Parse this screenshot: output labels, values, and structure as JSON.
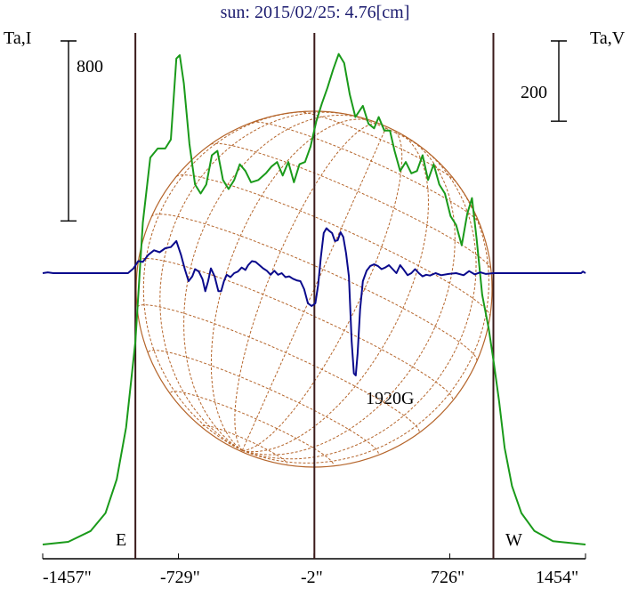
{
  "chart_data": {
    "type": "line",
    "title": "sun: 2015/02/25: 4.76[cm]",
    "left_axis_label": "Ta,I",
    "right_axis_label": "Ta,V",
    "x_tick_labels": [
      "-1457\"",
      "-729\"",
      "-2\"",
      "726\"",
      "1454\""
    ],
    "x_ticks": [
      -1457,
      -729,
      -2,
      726,
      1454
    ],
    "xlim": [
      -1457,
      1454
    ],
    "scale_bar_left": "800",
    "scale_bar_right": "200",
    "limb_labels": {
      "east": "E",
      "west": "W"
    },
    "limb_positions": [
      -960,
      0,
      960
    ],
    "annotation": {
      "text": "1920G",
      "x": 395
    },
    "colors": {
      "intensity": "#1a9a1a",
      "polarization": "#0a0a8c",
      "disk": "#b5652b",
      "limb_lines": "#3a1a1a"
    },
    "series": [
      {
        "key": "stokes-i",
        "color": "#1a9a1a",
        "points": [
          [
            -1457,
            0
          ],
          [
            -1320,
            12
          ],
          [
            -1200,
            60
          ],
          [
            -1120,
            140
          ],
          [
            -1060,
            290
          ],
          [
            -1010,
            520
          ],
          [
            -960,
            900
          ],
          [
            -920,
            1430
          ],
          [
            -880,
            1720
          ],
          [
            -840,
            1760
          ],
          [
            -800,
            1760
          ],
          [
            -770,
            1800
          ],
          [
            -740,
            2160
          ],
          [
            -722,
            2175
          ],
          [
            -700,
            2050
          ],
          [
            -670,
            1780
          ],
          [
            -640,
            1600
          ],
          [
            -610,
            1560
          ],
          [
            -580,
            1600
          ],
          [
            -550,
            1730
          ],
          [
            -520,
            1750
          ],
          [
            -490,
            1620
          ],
          [
            -460,
            1580
          ],
          [
            -430,
            1620
          ],
          [
            -400,
            1690
          ],
          [
            -370,
            1660
          ],
          [
            -340,
            1610
          ],
          [
            -300,
            1620
          ],
          [
            -260,
            1650
          ],
          [
            -230,
            1680
          ],
          [
            -200,
            1700
          ],
          [
            -170,
            1640
          ],
          [
            -140,
            1700
          ],
          [
            -110,
            1610
          ],
          [
            -80,
            1690
          ],
          [
            -50,
            1700
          ],
          [
            -20,
            1770
          ],
          [
            10,
            1880
          ],
          [
            40,
            1960
          ],
          [
            70,
            2030
          ],
          [
            100,
            2110
          ],
          [
            130,
            2180
          ],
          [
            160,
            2140
          ],
          [
            190,
            2000
          ],
          [
            220,
            1900
          ],
          [
            260,
            1950
          ],
          [
            290,
            1870
          ],
          [
            320,
            1850
          ],
          [
            345,
            1900
          ],
          [
            375,
            1840
          ],
          [
            405,
            1840
          ],
          [
            430,
            1750
          ],
          [
            460,
            1660
          ],
          [
            490,
            1700
          ],
          [
            520,
            1650
          ],
          [
            550,
            1660
          ],
          [
            580,
            1730
          ],
          [
            610,
            1620
          ],
          [
            640,
            1690
          ],
          [
            670,
            1600
          ],
          [
            700,
            1560
          ],
          [
            730,
            1460
          ],
          [
            760,
            1420
          ],
          [
            790,
            1330
          ],
          [
            820,
            1470
          ],
          [
            845,
            1540
          ],
          [
            870,
            1360
          ],
          [
            900,
            1110
          ],
          [
            935,
            960
          ],
          [
            960,
            820
          ],
          [
            990,
            640
          ],
          [
            1020,
            430
          ],
          [
            1060,
            260
          ],
          [
            1110,
            140
          ],
          [
            1180,
            60
          ],
          [
            1280,
            15
          ],
          [
            1454,
            0
          ]
        ]
      },
      {
        "key": "stokes-v",
        "color": "#0a0a8c",
        "points": [
          [
            -1457,
            0
          ],
          [
            -1430,
            2
          ],
          [
            -1400,
            0
          ],
          [
            -1100,
            0
          ],
          [
            -1000,
            0
          ],
          [
            -970,
            12
          ],
          [
            -945,
            30
          ],
          [
            -920,
            28
          ],
          [
            -890,
            46
          ],
          [
            -860,
            57
          ],
          [
            -830,
            52
          ],
          [
            -800,
            62
          ],
          [
            -770,
            65
          ],
          [
            -740,
            80
          ],
          [
            -715,
            45
          ],
          [
            -695,
            10
          ],
          [
            -675,
            -20
          ],
          [
            -655,
            -8
          ],
          [
            -640,
            10
          ],
          [
            -620,
            4
          ],
          [
            -600,
            -15
          ],
          [
            -585,
            -45
          ],
          [
            -570,
            -20
          ],
          [
            -555,
            12
          ],
          [
            -535,
            -8
          ],
          [
            -515,
            -45
          ],
          [
            -500,
            -45
          ],
          [
            -485,
            -20
          ],
          [
            -470,
            -4
          ],
          [
            -450,
            -10
          ],
          [
            -430,
            0
          ],
          [
            -410,
            4
          ],
          [
            -390,
            14
          ],
          [
            -370,
            8
          ],
          [
            -355,
            20
          ],
          [
            -335,
            30
          ],
          [
            -315,
            28
          ],
          [
            -295,
            20
          ],
          [
            -275,
            12
          ],
          [
            -255,
            6
          ],
          [
            -235,
            -4
          ],
          [
            -215,
            6
          ],
          [
            -195,
            -4
          ],
          [
            -175,
            0
          ],
          [
            -155,
            -10
          ],
          [
            -135,
            -8
          ],
          [
            -115,
            -14
          ],
          [
            -95,
            -18
          ],
          [
            -75,
            -20
          ],
          [
            -55,
            -40
          ],
          [
            -35,
            -75
          ],
          [
            -15,
            -82
          ],
          [
            5,
            -75
          ],
          [
            20,
            -30
          ],
          [
            35,
            40
          ],
          [
            50,
            100
          ],
          [
            65,
            112
          ],
          [
            80,
            105
          ],
          [
            95,
            100
          ],
          [
            110,
            80
          ],
          [
            125,
            82
          ],
          [
            140,
            102
          ],
          [
            155,
            90
          ],
          [
            170,
            50
          ],
          [
            185,
            -8
          ],
          [
            200,
            -170
          ],
          [
            212,
            -250
          ],
          [
            222,
            -255
          ],
          [
            232,
            -200
          ],
          [
            245,
            -90
          ],
          [
            260,
            -20
          ],
          [
            280,
            6
          ],
          [
            300,
            18
          ],
          [
            320,
            22
          ],
          [
            340,
            18
          ],
          [
            360,
            10
          ],
          [
            380,
            14
          ],
          [
            400,
            20
          ],
          [
            420,
            10
          ],
          [
            440,
            0
          ],
          [
            460,
            20
          ],
          [
            480,
            8
          ],
          [
            500,
            -5
          ],
          [
            520,
            0
          ],
          [
            540,
            10
          ],
          [
            560,
            0
          ],
          [
            580,
            -8
          ],
          [
            600,
            -4
          ],
          [
            620,
            -6
          ],
          [
            650,
            0
          ],
          [
            680,
            -5
          ],
          [
            720,
            -2
          ],
          [
            760,
            0
          ],
          [
            800,
            -5
          ],
          [
            830,
            5
          ],
          [
            860,
            -3
          ],
          [
            890,
            2
          ],
          [
            920,
            -2
          ],
          [
            960,
            0
          ],
          [
            1000,
            0
          ],
          [
            1100,
            0
          ],
          [
            1300,
            0
          ],
          [
            1430,
            0
          ],
          [
            1440,
            4
          ],
          [
            1454,
            0
          ]
        ]
      }
    ]
  }
}
